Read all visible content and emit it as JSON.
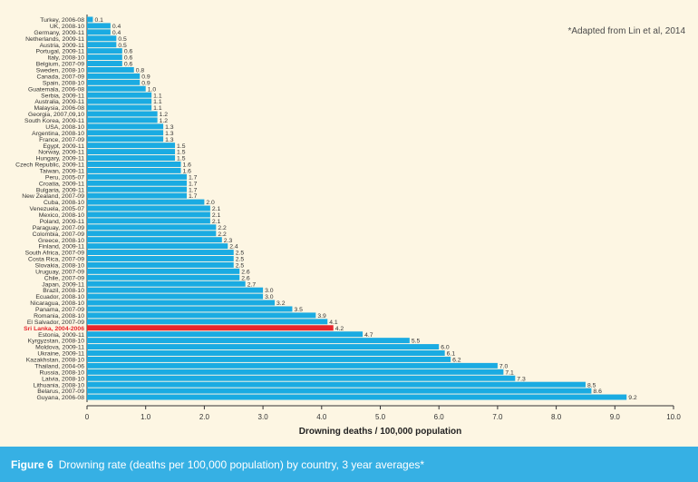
{
  "note": "*Adapted from Lin et al, 2014",
  "caption": {
    "label": "Figure 6",
    "text": "Drowning rate (deaths per 100,000 population) by country, 3 year averages*"
  },
  "colors": {
    "bar": "#1aabe2",
    "highlight": "#e8262d",
    "highlight_text": "#e8262d",
    "caption_background": "#36b0e4",
    "background": "#fdf6e3"
  },
  "chart_data": {
    "type": "bar",
    "orientation": "horizontal",
    "title": "",
    "xlabel": "Drowning deaths / 100,000 population",
    "ylabel": "",
    "xlim": [
      0,
      10.0
    ],
    "xticks": [
      "0",
      "1.0",
      "2.0",
      "3.0",
      "4.0",
      "5.0",
      "6.0",
      "7.0",
      "8.0",
      "9.0",
      "10.0"
    ],
    "grid": false,
    "categories": [
      "Turkey, 2006-08",
      "UK, 2008-10",
      "Germany, 2009-11",
      "Netherlands, 2009-11",
      "Austria, 2009-11",
      "Portugal, 2009-11",
      "Italy, 2008-10",
      "Belgium, 2007-09",
      "Sweden, 2008-10",
      "Canada, 2007-09",
      "Spain, 2008-10",
      "Guatemala, 2006-08",
      "Serbia, 2009-11",
      "Australia, 2009-11",
      "Malaysia, 2006-08",
      "Georgia, 2007,09,10",
      "South Korea, 2009-11",
      "USA, 2008-10",
      "Argentina, 2008-10",
      "France, 2007-09",
      "Egypt, 2009-11",
      "Norway, 2009-11",
      "Hungary, 2009-11",
      "Czech Republic, 2009-11",
      "Taiwan, 2009-11",
      "Peru, 2005-07",
      "Croatia, 2009-11",
      "Bulgaria, 2009-11",
      "New Zealand, 2007-09",
      "Cuba, 2008-10",
      "Venezuela, 2005-07",
      "Mexico, 2008-10",
      "Poland, 2009-11",
      "Paraguay, 2007-09",
      "Colombia, 2007-09",
      "Greece, 2008-10",
      "Finland, 2009-11",
      "South Africa, 2007-09",
      "Costa Rica, 2007-09",
      "Slovakia, 2008-10",
      "Uruguay, 2007-09",
      "Chile, 2007-09",
      "Japan, 2009-11",
      "Brazil, 2008-10",
      "Ecuador, 2008-10",
      "Nicaragua, 2008-10",
      "Panama, 2007-09",
      "Romania, 2008-10",
      "El Salvador, 2007-09",
      "Sri Lanka, 2004-2006",
      "Estonia, 2009-11",
      "Kyrgyzstan, 2008-10",
      "Moldova, 2009-11",
      "Ukraine, 2009-11",
      "Kazakhstan, 2008-10",
      "Thailand, 2004-06",
      "Russia, 2008-10",
      "Latvia, 2008-10",
      "Lithuania, 2008-10",
      "Belarus, 2007-09",
      "Guyana, 2006-08"
    ],
    "values": [
      0.1,
      0.4,
      0.4,
      0.5,
      0.5,
      0.6,
      0.6,
      0.6,
      0.8,
      0.9,
      0.9,
      1.0,
      1.1,
      1.1,
      1.1,
      1.2,
      1.2,
      1.3,
      1.3,
      1.3,
      1.5,
      1.5,
      1.5,
      1.6,
      1.6,
      1.7,
      1.7,
      1.7,
      1.7,
      2.0,
      2.1,
      2.1,
      2.1,
      2.2,
      2.2,
      2.3,
      2.4,
      2.5,
      2.5,
      2.5,
      2.6,
      2.6,
      2.7,
      3.0,
      3.0,
      3.2,
      3.5,
      3.9,
      4.1,
      4.2,
      4.7,
      5.5,
      6.0,
      6.1,
      6.2,
      7.0,
      7.1,
      7.3,
      8.5,
      8.6,
      9.2
    ],
    "value_labels": [
      "0.1",
      "0.4",
      "0.4",
      "0.5",
      "0.5",
      "0.6",
      "0.6",
      "0.6",
      "0.8",
      "0.9",
      "0.9",
      "1.0",
      "1.1",
      "1.1",
      "1.1",
      "1.2",
      "1.2",
      "1.3",
      "1.3",
      "1.3",
      "1.5",
      "1.5",
      "1.5",
      "1.6",
      "1.6",
      "1.7",
      "1.7",
      "1.7",
      "1.7",
      "2.0",
      "2.1",
      "2.1",
      "2.1",
      "2.2",
      "2.2",
      "2.3",
      "2.4",
      "2.5",
      "2.5",
      "2.5",
      "2.6",
      "2.6",
      "2.7",
      "3.0",
      "3.0",
      "3.2",
      "3.5",
      "3.9",
      "4.1",
      "4.2",
      "4.7",
      "5.5",
      "6.0",
      "6.1",
      "6.2",
      "7.0",
      "7.1",
      "7.3",
      "8.5",
      "8.6",
      "9.2"
    ],
    "highlight_category": "Sri Lanka, 2004-2006"
  }
}
